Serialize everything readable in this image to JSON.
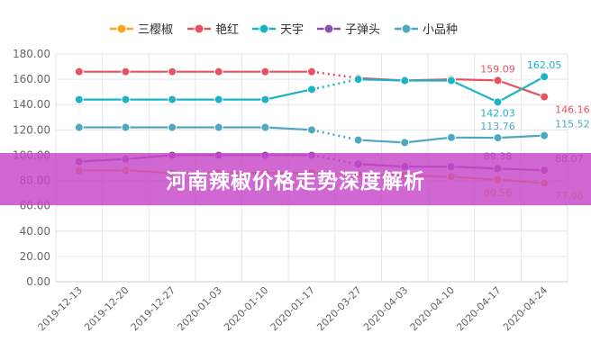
{
  "banner": {
    "title": "河南辣椒价格走势深度解析"
  },
  "chart_data": {
    "type": "line",
    "categories": [
      "2019-12-13",
      "2019-12-20",
      "2019-12-27",
      "2020-01-03",
      "2020-01-10",
      "2020-01-17",
      "2020-03-27",
      "2020-04-03",
      "2020-04-10",
      "2020-04-17",
      "2020-04-24"
    ],
    "ylim": [
      0,
      180
    ],
    "yticks": [
      "0.00",
      "20.00",
      "40.00",
      "60.00",
      "80.00",
      "100.00",
      "120.00",
      "140.00",
      "160.00",
      "180.00"
    ],
    "grid": true,
    "legend_position": "top",
    "series": [
      {
        "name": "三樱椒",
        "color": "#f5a623",
        "values": [
          88,
          88,
          86,
          86,
          86,
          86,
          85,
          84,
          83,
          80.56,
          77.96
        ],
        "labels": [
          "",
          "",
          "",
          "",
          "",
          "",
          "",
          "",
          "",
          "80.56",
          "77.96"
        ]
      },
      {
        "name": "艳红",
        "color": "#e8515e",
        "values": [
          166,
          166,
          166,
          166,
          166,
          166,
          161,
          159,
          160,
          159.09,
          146.16
        ],
        "labels": [
          "",
          "",
          "",
          "",
          "",
          "",
          "",
          "",
          "",
          "159.09",
          "146.16"
        ]
      },
      {
        "name": "天宇",
        "color": "#1cb3c7",
        "values": [
          144,
          144,
          144,
          144,
          144,
          152,
          160,
          159,
          159,
          142.03,
          162.05
        ],
        "labels": [
          "",
          "",
          "",
          "",
          "",
          "",
          "",
          "",
          "",
          "142.03",
          "162.05"
        ]
      },
      {
        "name": "子弹头",
        "color": "#8a52a8",
        "values": [
          95,
          97,
          100,
          100,
          100,
          100,
          93,
          91,
          91,
          89.38,
          88.07
        ],
        "labels": [
          "",
          "",
          "",
          "",
          "",
          "",
          "",
          "",
          "",
          "89.38",
          "88.07"
        ]
      },
      {
        "name": "小品种",
        "color": "#4fa8c1",
        "values": [
          122,
          122,
          122,
          122,
          122,
          120,
          112,
          110,
          114,
          113.76,
          115.52
        ],
        "labels": [
          "",
          "",
          "",
          "",
          "",
          "",
          "",
          "",
          "",
          "113.76",
          "115.52"
        ]
      }
    ]
  }
}
